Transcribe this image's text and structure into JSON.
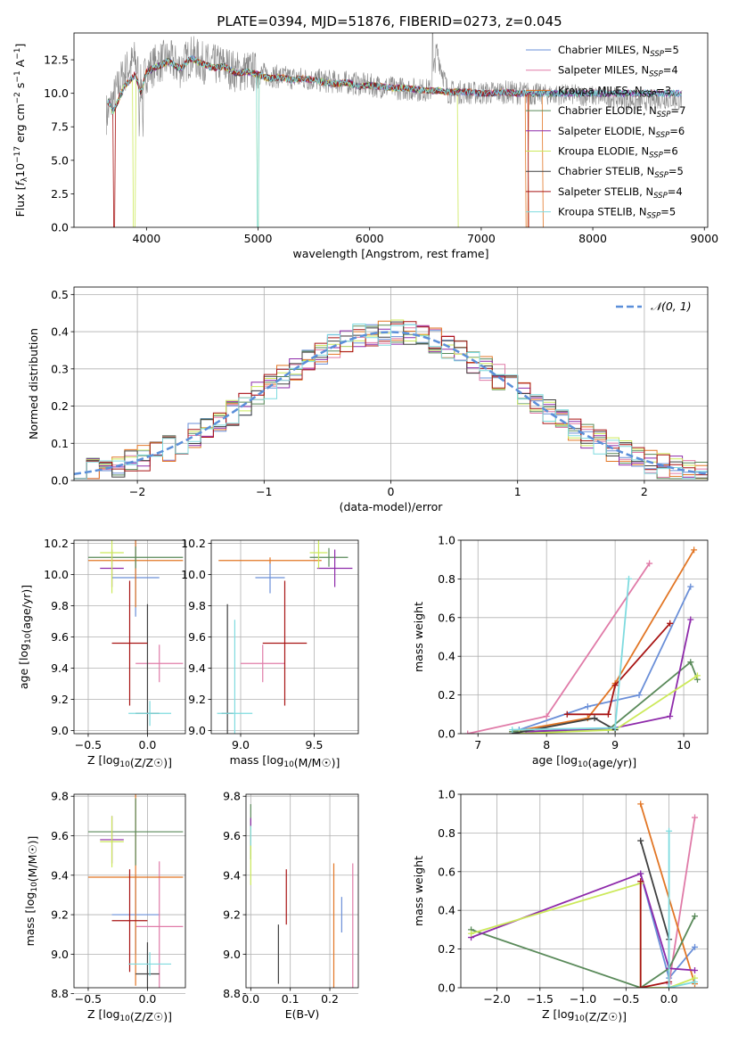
{
  "figure_title": "PLATE=0394, MJD=51876, FIBERID=0273, z=0.045",
  "series_styles": [
    {
      "name": "Chabrier MILES",
      "nssp": "5",
      "color": "#6a8fd8"
    },
    {
      "name": "Salpeter MILES",
      "nssp": "4",
      "color": "#e07ba8"
    },
    {
      "name": "Kroupa MILES",
      "nssp": "3",
      "color": "#e27625"
    },
    {
      "name": "Chabrier ELODIE",
      "nssp": "7",
      "color": "#5a8a5a"
    },
    {
      "name": "Salpeter ELODIE",
      "nssp": "6",
      "color": "#8e2aaa"
    },
    {
      "name": "Kroupa ELODIE",
      "nssp": "6",
      "color": "#cce95a"
    },
    {
      "name": "Chabrier STELIB",
      "nssp": "5",
      "color": "#404040"
    },
    {
      "name": "Salpeter STELIB",
      "nssp": "4",
      "color": "#a81414"
    },
    {
      "name": "Kroupa STELIB",
      "nssp": "5",
      "color": "#7fdbdf"
    }
  ],
  "chart_data": [
    {
      "id": "spectrum",
      "type": "line",
      "xlabel": "wavelength [Angstrom, rest frame]",
      "xlim": [
        3350,
        9030
      ],
      "ylim": [
        0,
        14.5
      ],
      "xticks": [
        4000,
        5000,
        6000,
        7000,
        8000,
        9000
      ],
      "yticks": [
        0.0,
        2.5,
        5.0,
        7.5,
        10.0,
        12.5
      ],
      "legend_loc": "upper right",
      "data_color": "#888888",
      "model_x": [
        3650,
        3700,
        3800,
        3900,
        3950,
        4000,
        4100,
        4200,
        4300,
        4400,
        4500,
        4600,
        4700,
        4800,
        4900,
        5000,
        5100,
        5200,
        5300,
        5400,
        5500,
        5600,
        5700,
        5800,
        5900,
        6000,
        6100,
        6200,
        6300,
        6400,
        6500,
        6600,
        6700,
        6800,
        6900,
        7000,
        7100,
        7200,
        7300,
        7400
      ],
      "model_y": [
        9.5,
        8.6,
        10.5,
        11.4,
        10.0,
        11.6,
        12.0,
        12.4,
        11.8,
        12.6,
        12.2,
        11.9,
        12.0,
        11.5,
        11.6,
        11.4,
        11.1,
        11.2,
        11.0,
        11.1,
        11.0,
        10.8,
        10.7,
        10.8,
        10.5,
        10.6,
        10.5,
        10.4,
        10.4,
        10.3,
        10.2,
        10.2,
        10.1,
        10.1,
        10.1,
        10.0,
        10.0,
        10.1,
        10.0,
        10.0
      ],
      "observed_x": [
        3650,
        3700,
        3800,
        3900,
        3950,
        4000,
        4100,
        4200,
        4300,
        4400,
        4500,
        4600,
        4700,
        4800,
        4900,
        5000,
        5200,
        5400,
        5600,
        5800,
        6000,
        6200,
        6400,
        6550,
        6600,
        6700,
        6800,
        7000,
        7200,
        7400,
        7600,
        7800,
        8000,
        8200,
        8400,
        8600,
        8800
      ],
      "observed_y": [
        8.5,
        9.5,
        11.5,
        12.5,
        10.5,
        11.6,
        12.3,
        12.5,
        11.9,
        12.8,
        12.3,
        12.1,
        12.1,
        11.6,
        11.7,
        11.5,
        11.2,
        11.1,
        10.9,
        10.8,
        10.6,
        10.4,
        10.3,
        10.2,
        13.2,
        10.1,
        10.1,
        10.0,
        10.1,
        10.0,
        9.9,
        9.9,
        9.8,
        9.7,
        9.4,
        9.6,
        9.5
      ]
    },
    {
      "id": "residuals",
      "type": "histogram",
      "xlabel": "(data-model)/error",
      "ylabel": "Normed distribution",
      "xlim": [
        -2.5,
        2.5
      ],
      "ylim": [
        0,
        0.52
      ],
      "xticks": [
        -2,
        -1,
        0,
        1,
        2
      ],
      "yticks": [
        0.0,
        0.1,
        0.2,
        0.3,
        0.4,
        0.5
      ],
      "bin_start": -2.5,
      "bin_width": 0.1,
      "reference_label": "𝒩(0, 1)",
      "reference_color": "#5b8fd9",
      "legend_loc": "upper right"
    },
    {
      "id": "age_vs_Z",
      "type": "errorbar",
      "xlabel": "Z [log10(Z/Z☉)]",
      "ylabel": "age  [log10(age/yr)]",
      "xlim": [
        -0.62,
        0.32
      ],
      "ylim": [
        8.98,
        10.22
      ],
      "xticks": [
        -0.5,
        0.0
      ],
      "xticklabels": [
        "−0.5",
        "0.0"
      ],
      "yticks": [
        9.0,
        9.2,
        9.4,
        9.6,
        9.8,
        10.0,
        10.2
      ],
      "points": [
        {
          "x": -0.1,
          "xerr": 0.2,
          "y": 9.98,
          "yerr": 0.25
        },
        {
          "x": 0.1,
          "xerr": 0.2,
          "y": 9.43,
          "yerr": 0.12
        },
        {
          "x": -0.1,
          "xerr": 0.4,
          "y": 10.09,
          "yerr": 0.3
        },
        {
          "x": -0.1,
          "xerr": 0.4,
          "y": 10.11,
          "yerr": 0.07
        },
        {
          "x": -0.3,
          "xerr": 0.1,
          "y": 10.04,
          "yerr": 0.12
        },
        {
          "x": -0.3,
          "xerr": 0.1,
          "y": 10.14,
          "yerr": 0.26
        },
        {
          "x": 0.0,
          "xerr": 0.1,
          "y": 9.11,
          "yerr": 0.7
        },
        {
          "x": -0.15,
          "xerr": 0.15,
          "y": 9.56,
          "yerr": 0.4
        },
        {
          "x": 0.02,
          "xerr": 0.18,
          "y": 9.11,
          "yerr": 0.08
        }
      ]
    },
    {
      "id": "age_vs_mass",
      "type": "errorbar",
      "xlabel": "mass [log10(M/M☉)]",
      "xlim": [
        8.8,
        9.8
      ],
      "ylim": [
        8.98,
        10.22
      ],
      "xticks": [
        9.0,
        9.5
      ],
      "yticks": [
        9.0,
        9.2,
        9.4,
        9.6,
        9.8,
        10.0,
        10.2
      ],
      "points": [
        {
          "x": 9.2,
          "xerr": 0.1,
          "y": 9.98,
          "yerr": 0.1
        },
        {
          "x": 9.15,
          "xerr": 0.15,
          "y": 9.43,
          "yerr": 0.12
        },
        {
          "x": 9.2,
          "xerr": 0.35,
          "y": 10.09,
          "yerr": 0.02
        },
        {
          "x": 9.6,
          "xerr": 0.13,
          "y": 10.11,
          "yerr": 0.06
        },
        {
          "x": 9.64,
          "xerr": 0.12,
          "y": 10.04,
          "yerr": 0.12
        },
        {
          "x": 9.53,
          "xerr": 0.06,
          "y": 10.14,
          "yerr": 0.1
        },
        {
          "x": 8.91,
          "xerr": 0.04,
          "y": 9.11,
          "yerr": 0.7
        },
        {
          "x": 9.3,
          "xerr": 0.15,
          "y": 9.56,
          "yerr": 0.4
        },
        {
          "x": 8.96,
          "xerr": 0.12,
          "y": 9.11,
          "yerr": 0.6
        }
      ]
    },
    {
      "id": "mw_vs_age",
      "type": "line",
      "xlabel": "age  [log10(age/yr)]",
      "ylabel": "mass weight",
      "xlim": [
        6.75,
        10.35
      ],
      "ylim": [
        0,
        1.0
      ],
      "xticks": [
        7,
        8,
        9,
        10
      ],
      "yticks": [
        0.0,
        0.2,
        0.4,
        0.6,
        0.8,
        1.0
      ],
      "series": [
        {
          "x": [
            7.6,
            8.6,
            9.35,
            10.1
          ],
          "y": [
            0.02,
            0.14,
            0.2,
            0.76
          ]
        },
        {
          "x": [
            6.85,
            8.0,
            9.5
          ],
          "y": [
            0.0,
            0.09,
            0.88
          ]
        },
        {
          "x": [
            7.5,
            8.6,
            9.0,
            10.15
          ],
          "y": [
            0.01,
            0.08,
            0.26,
            0.95
          ]
        },
        {
          "x": [
            7.5,
            8.9,
            10.1,
            10.2
          ],
          "y": [
            0.01,
            0.02,
            0.37,
            0.28
          ]
        },
        {
          "x": [
            7.7,
            9.0,
            9.8,
            10.1
          ],
          "y": [
            0.01,
            0.03,
            0.09,
            0.59
          ]
        },
        {
          "x": [
            7.6,
            9.0,
            10.2
          ],
          "y": [
            0.0,
            0.02,
            0.3
          ]
        },
        {
          "x": [
            7.5,
            8.7,
            9.0
          ],
          "y": [
            0.0,
            0.08,
            0.02
          ]
        },
        {
          "x": [
            8.3,
            8.9,
            9.0,
            9.8
          ],
          "y": [
            0.1,
            0.1,
            0.25,
            0.57
          ]
        },
        {
          "x": [
            7.5,
            9.0,
            9.2
          ],
          "y": [
            0.02,
            0.03,
            0.8
          ]
        }
      ]
    },
    {
      "id": "mass_vs_Z",
      "type": "errorbar",
      "xlabel": "Z [log10(Z/Z☉)]",
      "ylabel": "mass [log10(M/M☉)]",
      "xlim": [
        -0.62,
        0.32
      ],
      "ylim": [
        8.83,
        9.81
      ],
      "xticks": [
        -0.5,
        0.0
      ],
      "xticklabels": [
        "−0.5",
        "0.0"
      ],
      "yticks": [
        8.8,
        9.0,
        9.2,
        9.4,
        9.6,
        9.8
      ],
      "points": [
        {
          "x": -0.1,
          "xerr": 0.2,
          "y": 9.2,
          "yerr": 0.2
        },
        {
          "x": 0.1,
          "xerr": 0.2,
          "y": 9.14,
          "yerr": 0.33
        },
        {
          "x": -0.1,
          "xerr": 0.4,
          "y": 9.39,
          "yerr": 0.55
        },
        {
          "x": -0.1,
          "xerr": 0.4,
          "y": 9.62,
          "yerr": 0.17
        },
        {
          "x": -0.3,
          "xerr": 0.1,
          "y": 9.58,
          "yerr": 0.12
        },
        {
          "x": -0.3,
          "xerr": 0.1,
          "y": 9.57,
          "yerr": 0.13
        },
        {
          "x": 0.0,
          "xerr": 0.1,
          "y": 8.9,
          "yerr": 0.16
        },
        {
          "x": -0.15,
          "xerr": 0.15,
          "y": 9.17,
          "yerr": 0.26
        },
        {
          "x": 0.02,
          "xerr": 0.18,
          "y": 8.95,
          "yerr": 0.06
        }
      ]
    },
    {
      "id": "mass_vs_EBV",
      "type": "errorbar",
      "xlabel": "E(B-V)",
      "xlim": [
        -0.012,
        0.272
      ],
      "ylim": [
        8.83,
        9.81
      ],
      "xticks": [
        0.0,
        0.1,
        0.2
      ],
      "yticks": [
        8.8,
        9.0,
        9.2,
        9.4,
        9.6,
        9.8
      ],
      "points": [
        {
          "x": 0.23,
          "xerr": 0,
          "y": 9.2,
          "yerr": 0.09
        },
        {
          "x": 0.258,
          "xerr": 0,
          "y": 9.14,
          "yerr": 0.32
        },
        {
          "x": 0.21,
          "xerr": 0,
          "y": 9.14,
          "yerr": 0.32
        },
        {
          "x": 0.0,
          "xerr": 0,
          "y": 9.62,
          "yerr": 0.14
        },
        {
          "x": 0.0,
          "xerr": 0,
          "y": 9.62,
          "yerr": 0.07
        },
        {
          "x": 0.0,
          "xerr": 0,
          "y": 9.5,
          "yerr": 0.15
        },
        {
          "x": 0.07,
          "xerr": 0,
          "y": 9.0,
          "yerr": 0.15
        },
        {
          "x": 0.09,
          "xerr": 0,
          "y": 9.29,
          "yerr": 0.14
        },
        {
          "x": 0.0,
          "xerr": 0,
          "y": 9.6,
          "yerr": 0.05
        }
      ]
    },
    {
      "id": "mw_vs_Z",
      "type": "line",
      "xlabel": "Z [log10(Z/Z☉)]",
      "ylabel": "mass weight",
      "xlim": [
        -2.42,
        0.45
      ],
      "ylim": [
        0,
        1.0
      ],
      "xticks": [
        -2.0,
        -1.5,
        -1.0,
        -0.5,
        0.0
      ],
      "xticklabels": [
        "−2.0",
        "−1.5",
        "−1.0",
        "−0.5",
        "0.0"
      ],
      "yticks": [
        0.0,
        0.2,
        0.4,
        0.6,
        0.8,
        1.0
      ],
      "series": [
        {
          "x": [
            -0.33,
            0.0,
            0.3
          ],
          "y": [
            0.59,
            0.05,
            0.21
          ]
        },
        {
          "x": [
            0.0,
            0.3
          ],
          "y": [
            0.02,
            0.88
          ]
        },
        {
          "x": [
            -0.33,
            0.3
          ],
          "y": [
            0.95,
            0.02
          ]
        },
        {
          "x": [
            -2.3,
            -0.33,
            0.0,
            0.3
          ],
          "y": [
            0.3,
            0.0,
            0.1,
            0.37
          ]
        },
        {
          "x": [
            -2.3,
            -0.33,
            0.0,
            0.3
          ],
          "y": [
            0.26,
            0.59,
            0.1,
            0.09
          ]
        },
        {
          "x": [
            -2.3,
            -0.33,
            -0.33,
            0.0,
            0.3
          ],
          "y": [
            0.28,
            0.54,
            0.0,
            0.0,
            0.05
          ]
        },
        {
          "x": [
            -0.33,
            0.0,
            0.0
          ],
          "y": [
            0.76,
            0.25,
            0.0
          ]
        },
        {
          "x": [
            -0.33,
            -0.33,
            0.0
          ],
          "y": [
            0.55,
            0.0,
            0.03
          ]
        },
        {
          "x": [
            0.0,
            0.0,
            0.3
          ],
          "y": [
            0.81,
            0.0,
            0.03
          ]
        }
      ]
    }
  ]
}
